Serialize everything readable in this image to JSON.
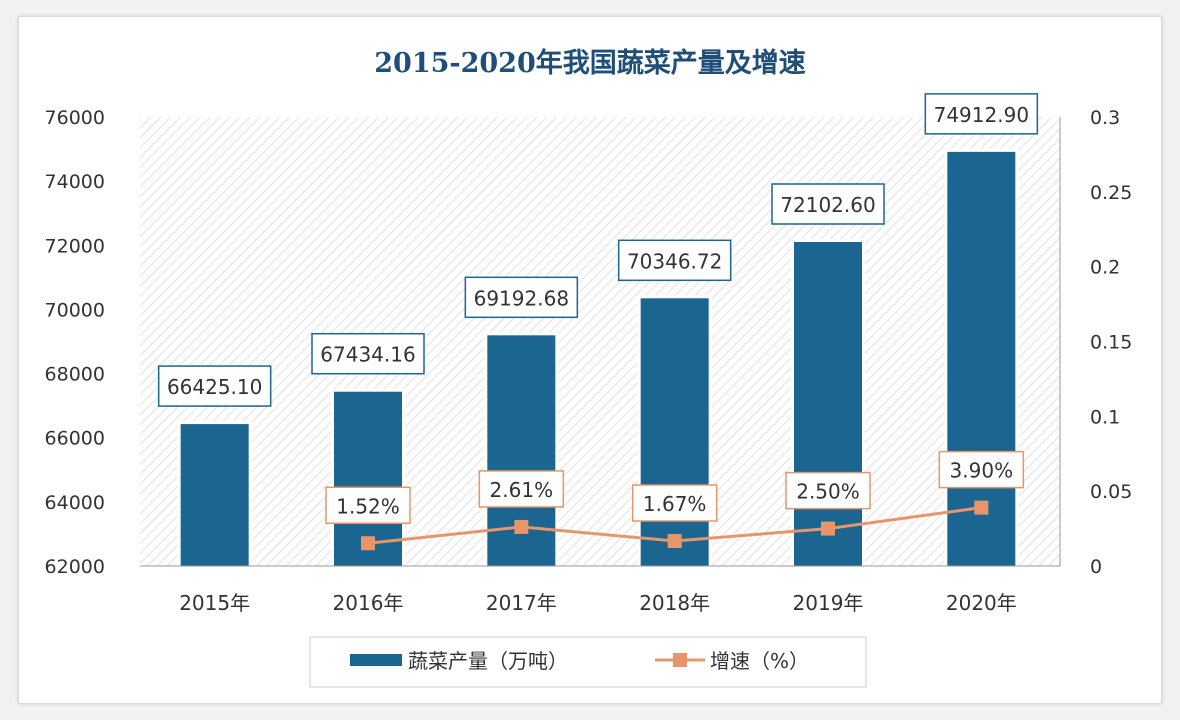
{
  "chart_data": {
    "type": "bar+line",
    "title": "2015-2020年我国蔬菜产量及增速",
    "categories": [
      "2015年",
      "2016年",
      "2017年",
      "2018年",
      "2019年",
      "2020年"
    ],
    "series": [
      {
        "name": "蔬菜产量（万吨）",
        "type": "bar",
        "axis": "left",
        "values": [
          66425.1,
          67434.16,
          69192.68,
          70346.72,
          72102.6,
          74912.9
        ],
        "labels": [
          "66425.10",
          "67434.16",
          "69192.68",
          "70346.72",
          "72102.60",
          "74912.90"
        ],
        "color": "#1a6690"
      },
      {
        "name": "增速（%）",
        "type": "line",
        "axis": "right",
        "values": [
          null,
          0.0152,
          0.0261,
          0.0167,
          0.025,
          0.039
        ],
        "labels": [
          "",
          "1.52%",
          "2.61%",
          "1.67%",
          "2.50%",
          "3.90%"
        ],
        "color": "#e8956a"
      }
    ],
    "y_left": {
      "min": 62000,
      "max": 76000,
      "ticks": [
        "62000",
        "64000",
        "66000",
        "68000",
        "70000",
        "72000",
        "74000",
        "76000"
      ]
    },
    "y_right": {
      "min": 0,
      "max": 0.3,
      "ticks": [
        "0",
        "0.05",
        "0.1",
        "0.15",
        "0.2",
        "0.25",
        "0.3"
      ]
    },
    "legend": "bottom",
    "grid": false,
    "background_pattern": "diagonal hatch"
  }
}
